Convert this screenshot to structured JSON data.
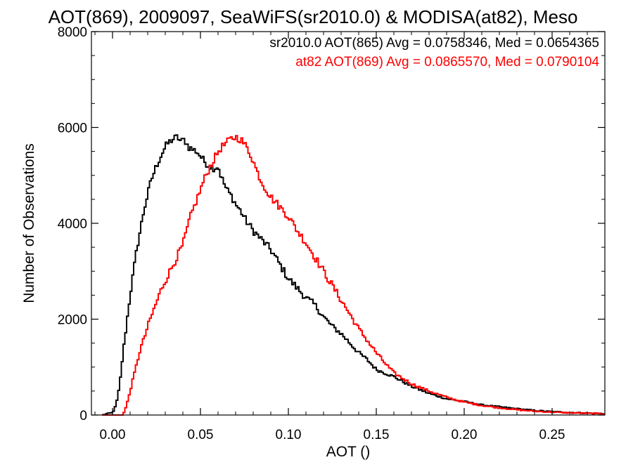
{
  "chart_data": {
    "type": "line",
    "title": "AOT(869), 2009097, SeaWiFS(sr2010.0) & MODISA(at82), Meso",
    "xlabel": "AOT ()",
    "ylabel": "Number of Observations",
    "xlim": [
      -0.012,
      0.28
    ],
    "ylim": [
      0,
      8000
    ],
    "xticks": [
      "0.00",
      "0.05",
      "0.10",
      "0.15",
      "0.20",
      "0.25"
    ],
    "yticks": [
      "0",
      "2000",
      "4000",
      "6000",
      "8000"
    ],
    "grid": false,
    "legend_position": "top-right",
    "legend": [
      "sr2010.0 AOT(865) Avg = 0.0758346, Med = 0.0654365",
      "at82 AOT(869) Avg = 0.0865570, Med = 0.0790104"
    ],
    "series": [
      {
        "color": "#000000",
        "x": [
          -0.006,
          0.0,
          0.002,
          0.004,
          0.006,
          0.008,
          0.01,
          0.012,
          0.014,
          0.016,
          0.018,
          0.02,
          0.022,
          0.025,
          0.028,
          0.031,
          0.034,
          0.037,
          0.039,
          0.041,
          0.043,
          0.045,
          0.048,
          0.05,
          0.052,
          0.055,
          0.058,
          0.06,
          0.062,
          0.065,
          0.068,
          0.07,
          0.073,
          0.076,
          0.08,
          0.085,
          0.09,
          0.095,
          0.1,
          0.105,
          0.11,
          0.115,
          0.12,
          0.125,
          0.13,
          0.135,
          0.14,
          0.145,
          0.15,
          0.16,
          0.17,
          0.18,
          0.19,
          0.2,
          0.21,
          0.22,
          0.23,
          0.24,
          0.25,
          0.26,
          0.27,
          0.28
        ],
        "y": [
          0,
          50,
          200,
          600,
          1300,
          1900,
          2500,
          3000,
          3500,
          3900,
          4300,
          4600,
          4900,
          5200,
          5450,
          5650,
          5750,
          5800,
          5700,
          5750,
          5600,
          5550,
          5500,
          5400,
          5300,
          5200,
          5150,
          5200,
          4950,
          4700,
          4550,
          4400,
          4250,
          4050,
          3850,
          3650,
          3450,
          3150,
          2850,
          2650,
          2450,
          2300,
          2050,
          1850,
          1700,
          1500,
          1300,
          1150,
          950,
          800,
          600,
          450,
          340,
          280,
          210,
          170,
          130,
          95,
          70,
          55,
          40,
          30
        ]
      },
      {
        "color": "#ff0000",
        "x": [
          -0.006,
          0.0,
          0.006,
          0.008,
          0.01,
          0.012,
          0.014,
          0.016,
          0.018,
          0.02,
          0.022,
          0.025,
          0.028,
          0.032,
          0.036,
          0.04,
          0.044,
          0.048,
          0.052,
          0.055,
          0.058,
          0.061,
          0.064,
          0.067,
          0.07,
          0.073,
          0.076,
          0.079,
          0.082,
          0.085,
          0.09,
          0.095,
          0.1,
          0.105,
          0.11,
          0.115,
          0.12,
          0.125,
          0.13,
          0.135,
          0.14,
          0.145,
          0.15,
          0.155,
          0.16,
          0.17,
          0.18,
          0.19,
          0.2,
          0.21,
          0.22,
          0.23,
          0.24,
          0.25,
          0.26,
          0.27,
          0.28
        ],
        "y": [
          0,
          0,
          0,
          200,
          500,
          800,
          1100,
          1400,
          1600,
          1850,
          2050,
          2350,
          2650,
          2950,
          3250,
          3550,
          4100,
          4500,
          4900,
          5150,
          5350,
          5550,
          5650,
          5750,
          5800,
          5750,
          5600,
          5400,
          5100,
          4850,
          4550,
          4350,
          4150,
          3850,
          3600,
          3300,
          3000,
          2700,
          2400,
          2100,
          1800,
          1550,
          1300,
          1080,
          880,
          650,
          500,
          370,
          270,
          200,
          150,
          110,
          80,
          60,
          45,
          35,
          25
        ]
      }
    ]
  }
}
